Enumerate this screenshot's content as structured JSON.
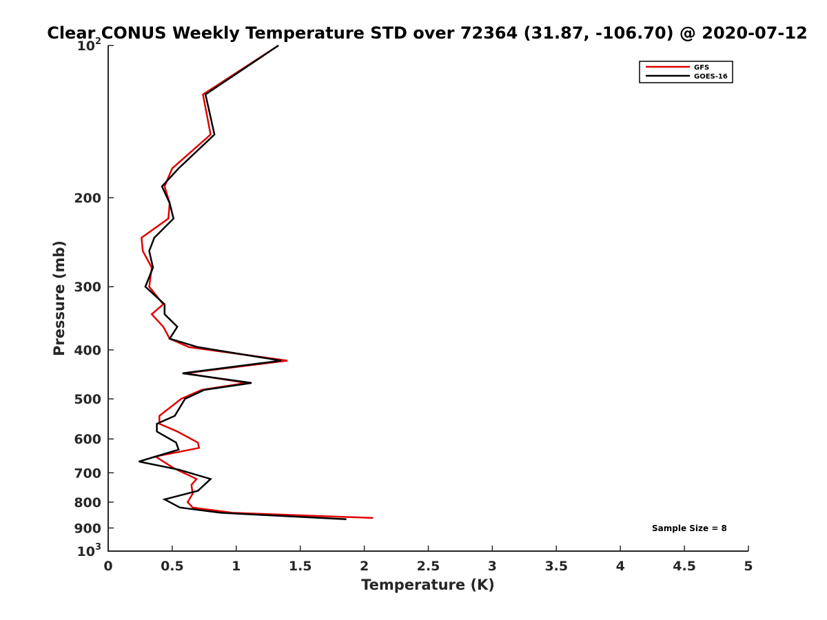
{
  "chart_data": {
    "type": "line",
    "title": "Clear CONUS Weekly Temperature STD over 72364 (31.87, -106.70) @ 2020-07-12",
    "xlabel": "Temperature (K)",
    "ylabel": "Pressure (mb)",
    "xlim": [
      0,
      5
    ],
    "ylim": [
      100,
      1000
    ],
    "y_scale": "log",
    "y_reversed": true,
    "x_ticks": [
      "0",
      "0.5",
      "1",
      "1.5",
      "2",
      "2.5",
      "3",
      "3.5",
      "4",
      "4.5",
      "5"
    ],
    "y_ticks": [
      {
        "value": 100,
        "base": "10",
        "exp": "2"
      },
      {
        "value": 200,
        "label": "200"
      },
      {
        "value": 300,
        "label": "300"
      },
      {
        "value": 400,
        "label": "400"
      },
      {
        "value": 500,
        "label": "500"
      },
      {
        "value": 600,
        "label": "600"
      },
      {
        "value": 700,
        "label": "700"
      },
      {
        "value": 800,
        "label": "800"
      },
      {
        "value": 900,
        "label": "900"
      },
      {
        "value": 1000,
        "base": "10",
        "exp": "3"
      }
    ],
    "grid": false,
    "legend_position": "top-right",
    "annotation": "Sample Size = 8",
    "series": [
      {
        "name": "GFS",
        "color": "#e00000",
        "x": [
          1.33,
          0.74,
          0.8,
          0.5,
          0.44,
          0.48,
          0.47,
          0.26,
          0.27,
          0.34,
          0.32,
          0.43,
          0.34,
          0.43,
          0.48,
          0.63,
          1.4,
          0.6,
          1.08,
          0.73,
          0.57,
          0.4,
          0.4,
          0.54,
          0.7,
          0.71,
          0.37,
          0.51,
          0.69,
          0.65,
          0.66,
          0.62,
          0.66,
          0.97,
          2.07
        ],
        "y": [
          100,
          125,
          150,
          175,
          190,
          205,
          220,
          240,
          255,
          275,
          300,
          325,
          340,
          360,
          380,
          395,
          420,
          445,
          465,
          480,
          500,
          540,
          560,
          580,
          610,
          625,
          650,
          685,
          720,
          740,
          770,
          800,
          820,
          840,
          860
        ]
      },
      {
        "name": "GOES-16",
        "color": "#000000",
        "x": [
          1.33,
          0.76,
          0.83,
          0.55,
          0.42,
          0.48,
          0.51,
          0.36,
          0.32,
          0.35,
          0.29,
          0.44,
          0.44,
          0.54,
          0.48,
          0.7,
          1.35,
          0.58,
          1.12,
          0.75,
          0.6,
          0.52,
          0.38,
          0.38,
          0.53,
          0.55,
          0.24,
          0.55,
          0.8,
          0.7,
          0.44,
          0.56,
          0.88,
          1.86
        ],
        "y": [
          100,
          125,
          150,
          175,
          190,
          205,
          220,
          240,
          255,
          275,
          300,
          325,
          340,
          360,
          380,
          395,
          420,
          445,
          465,
          480,
          500,
          540,
          560,
          580,
          610,
          630,
          665,
          690,
          720,
          760,
          790,
          820,
          840,
          865
        ]
      }
    ]
  }
}
